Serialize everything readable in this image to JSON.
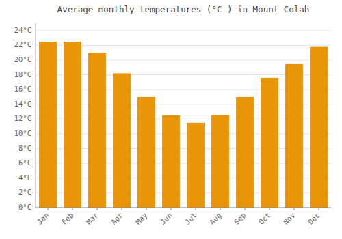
{
  "chart_data": {
    "type": "bar",
    "title": "Average monthly temperatures (°C ) in Mount Colah",
    "categories": [
      "Jan",
      "Feb",
      "Mar",
      "Apr",
      "May",
      "Jun",
      "Jul",
      "Aug",
      "Sep",
      "Oct",
      "Nov",
      "Dec"
    ],
    "values": [
      22.5,
      22.5,
      21.0,
      18.2,
      15.0,
      12.5,
      11.5,
      12.6,
      15.0,
      17.6,
      19.5,
      21.8
    ],
    "color": "#E8950A",
    "ylim": [
      0,
      25
    ],
    "yticks": [
      {
        "value": 0,
        "label": "0°C"
      },
      {
        "value": 2,
        "label": "2°C"
      },
      {
        "value": 4,
        "label": "4°C"
      },
      {
        "value": 6,
        "label": "6°C"
      },
      {
        "value": 8,
        "label": "8°C"
      },
      {
        "value": 10,
        "label": "10°C"
      },
      {
        "value": 12,
        "label": "12°C"
      },
      {
        "value": 14,
        "label": "14°C"
      },
      {
        "value": 16,
        "label": "16°C"
      },
      {
        "value": 18,
        "label": "18°C"
      },
      {
        "value": 20,
        "label": "20°C"
      },
      {
        "value": 22,
        "label": "22°C"
      },
      {
        "value": 24,
        "label": "24°C"
      }
    ],
    "grid": true
  }
}
